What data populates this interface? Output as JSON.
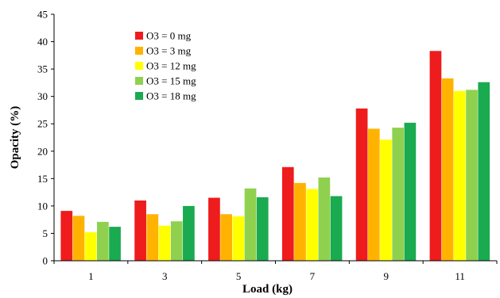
{
  "chart_data": {
    "type": "bar",
    "title": "",
    "xlabel": "Load (kg)",
    "ylabel": "Opacity (%)",
    "ylim": [
      0,
      45
    ],
    "yticks": [
      0,
      5,
      10,
      15,
      20,
      25,
      30,
      35,
      40,
      45
    ],
    "grid": false,
    "legend_position": "top-left",
    "categories": [
      "1",
      "3",
      "5",
      "7",
      "9",
      "11"
    ],
    "series": [
      {
        "name": "O3 = 0 mg",
        "color": "#ee1c1c",
        "values": [
          9.1,
          11.0,
          11.5,
          17.1,
          27.8,
          38.3
        ]
      },
      {
        "name": "O3 = 3 mg",
        "color": "#ffb300",
        "values": [
          8.2,
          8.5,
          8.5,
          14.2,
          24.1,
          33.3
        ]
      },
      {
        "name": "O3 = 12 mg",
        "color": "#ffff00",
        "values": [
          5.2,
          6.4,
          8.1,
          13.1,
          22.1,
          31.0
        ]
      },
      {
        "name": "O3 = 15 mg",
        "color": "#8fd14f",
        "values": [
          7.1,
          7.2,
          13.2,
          15.2,
          24.3,
          31.2
        ]
      },
      {
        "name": "O3 = 18 mg",
        "color": "#1aaa50",
        "values": [
          6.2,
          10.0,
          11.6,
          11.8,
          25.2,
          32.6
        ]
      }
    ]
  }
}
